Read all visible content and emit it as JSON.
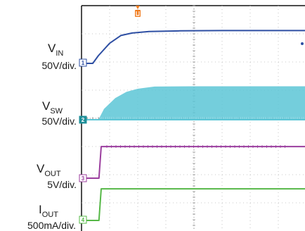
{
  "chart_data": {
    "type": "line",
    "title": "",
    "grid": true,
    "trigger_marker": {
      "label": "T",
      "color": "#f07c1f"
    },
    "channels": [
      {
        "id": "vin",
        "name_main": "V",
        "name_sub": "IN",
        "scale": "50V/div.",
        "marker": "1",
        "color": "#2e4fa3",
        "style": "line",
        "points": [
          [
            0,
            0.0
          ],
          [
            0.4,
            0.0
          ],
          [
            0.6,
            0.25
          ],
          [
            1.0,
            0.65
          ],
          [
            1.4,
            0.9
          ],
          [
            1.8,
            0.98
          ],
          [
            2.4,
            1.03
          ],
          [
            3.5,
            1.05
          ],
          [
            5,
            1.06
          ],
          [
            8,
            1.06
          ]
        ]
      },
      {
        "id": "vsw",
        "name_main": "V",
        "name_sub": "SW",
        "scale": "50V/div.",
        "marker": "2",
        "color": "#5cc6d6",
        "style": "envelope",
        "points": [
          [
            0,
            0.0
          ],
          [
            0.6,
            0.0
          ],
          [
            0.8,
            0.35
          ],
          [
            1.2,
            0.7
          ],
          [
            1.6,
            0.9
          ],
          [
            2.0,
            1.0
          ],
          [
            2.6,
            1.07
          ],
          [
            4,
            1.08
          ],
          [
            8,
            1.08
          ]
        ]
      },
      {
        "id": "vout",
        "name_main": "V",
        "name_sub": "OUT",
        "scale": "5V/div.",
        "marker": "3",
        "color": "#9b3e9e",
        "style": "line",
        "points": [
          [
            0,
            0.0
          ],
          [
            0.62,
            0.0
          ],
          [
            0.7,
            1.02
          ],
          [
            8,
            1.02
          ]
        ]
      },
      {
        "id": "iout",
        "name_main": "I",
        "name_sub": "OUT",
        "scale": "500mA/div.",
        "marker": "4",
        "color": "#56b847",
        "style": "line",
        "points": [
          [
            0,
            0.0
          ],
          [
            0.62,
            0.0
          ],
          [
            0.7,
            1.02
          ],
          [
            8,
            1.02
          ]
        ]
      }
    ]
  }
}
